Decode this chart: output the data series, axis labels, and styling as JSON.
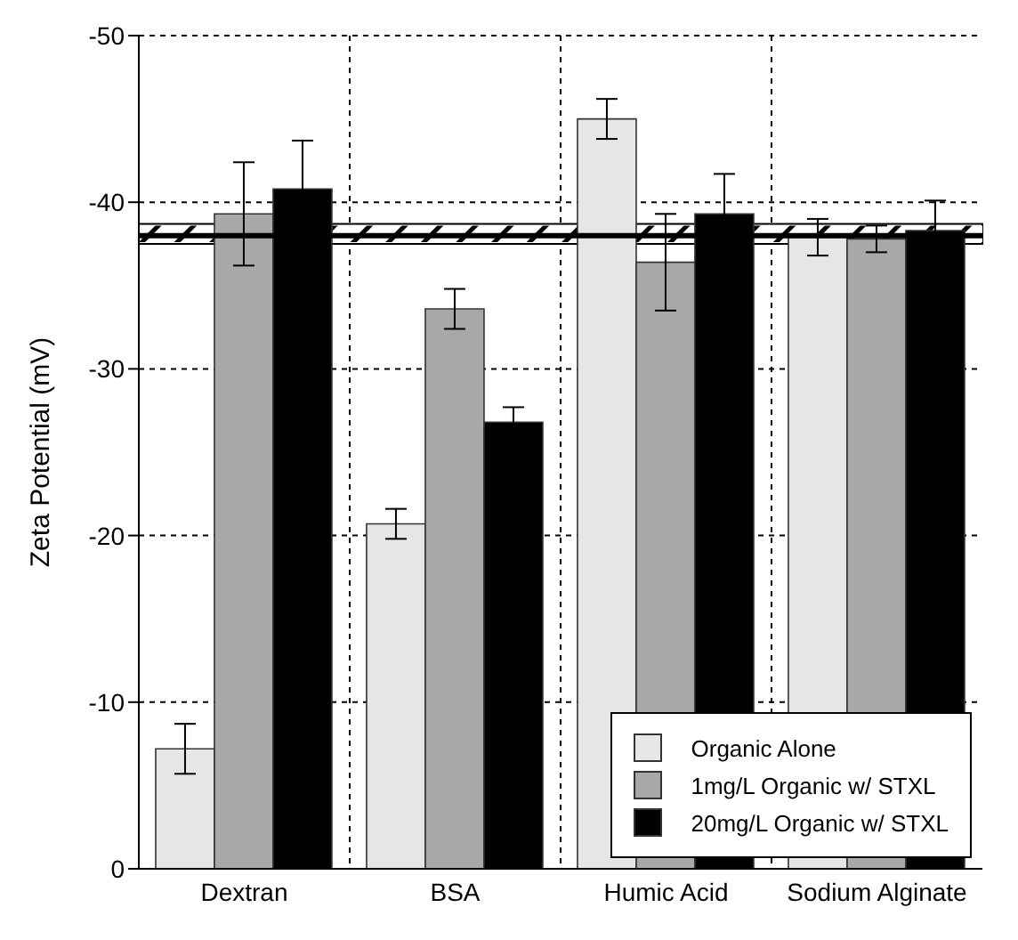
{
  "chart_data": {
    "type": "bar",
    "ylabel": "Zeta Potential (mV)",
    "categories": [
      "Dextran",
      "BSA",
      "Humic Acid",
      "Sodium Alginate"
    ],
    "series": [
      {
        "name": "Organic Alone",
        "color": "#e6e6e6",
        "values": [
          -7.2,
          -20.7,
          -45.0,
          -37.9
        ],
        "errors": [
          1.5,
          0.9,
          1.2,
          1.1
        ]
      },
      {
        "name": "1mg/L Organic w/ STXL",
        "color": "#a8a8a8",
        "values": [
          -39.3,
          -33.6,
          -36.4,
          -37.8
        ],
        "errors": [
          3.1,
          1.2,
          2.9,
          0.8
        ]
      },
      {
        "name": "20mg/L Organic w/ STXL",
        "color": "#000000",
        "values": [
          -40.8,
          -26.8,
          -39.3,
          -38.3
        ],
        "errors": [
          2.9,
          0.9,
          2.4,
          1.8
        ]
      }
    ],
    "ylim": [
      0,
      -50
    ],
    "yticks": [
      0,
      -10,
      -20,
      -30,
      -40,
      -50
    ],
    "ref_lines": [
      {
        "axis": "y",
        "value": -38,
        "color": "#000000"
      }
    ],
    "bands": [
      {
        "axis": "y",
        "from": -37.5,
        "to": -38.7,
        "color": "#ffffff"
      }
    ],
    "grid": true,
    "legend": "bottom right"
  }
}
